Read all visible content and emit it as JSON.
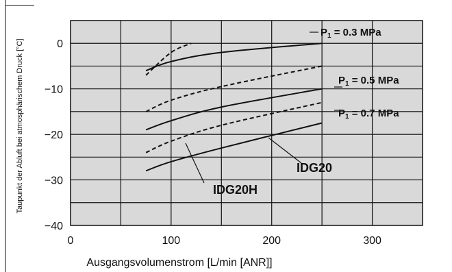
{
  "chart_data": {
    "type": "line",
    "xlabel": "Ausgangsvolumenstrom [L/min [ANR]]",
    "ylabel": "Taupunkt der Abluft bei atmosphärischem Druck [°C]",
    "xlim": [
      0,
      350
    ],
    "ylim": [
      -40,
      5
    ],
    "xticks": [
      0,
      100,
      200,
      300
    ],
    "yticks": [
      0,
      -10,
      -20,
      -30,
      -40
    ],
    "grid": true,
    "background": "#d9d9d9",
    "series": [
      {
        "name": "IDG20H",
        "pressure": "P1 = 0.3 MPa",
        "style": "dashed",
        "x": [
          75,
          100,
          120
        ],
        "y": [
          -7,
          -2,
          0
        ]
      },
      {
        "name": "IDG20",
        "pressure": "P1 = 0.3 MPa",
        "style": "solid",
        "x": [
          75,
          100,
          150,
          250
        ],
        "y": [
          -6,
          -4,
          -2,
          0
        ]
      },
      {
        "name": "IDG20H",
        "pressure": "P1 = 0.5 MPa",
        "style": "dashed",
        "x": [
          75,
          100,
          150,
          250
        ],
        "y": [
          -15,
          -12.5,
          -9.5,
          -5
        ]
      },
      {
        "name": "IDG20",
        "pressure": "P1 = 0.5 MPa",
        "style": "solid",
        "x": [
          75,
          100,
          150,
          250
        ],
        "y": [
          -19,
          -17,
          -14,
          -10
        ]
      },
      {
        "name": "IDG20H",
        "pressure": "P1 = 0.7 MPa",
        "style": "dashed",
        "x": [
          75,
          100,
          150,
          250
        ],
        "y": [
          -24,
          -21.5,
          -18,
          -13
        ]
      },
      {
        "name": "IDG20",
        "pressure": "P1 = 0.7 MPa",
        "style": "solid",
        "x": [
          75,
          100,
          150,
          250
        ],
        "y": [
          -28,
          -26,
          -23,
          -17.5
        ]
      }
    ],
    "annotations": {
      "p03": {
        "pre": "P",
        "sub": "1",
        "post": " = 0.3 MPa"
      },
      "p05": {
        "pre": "P",
        "sub": "1",
        "post": " = 0.5 MPa"
      },
      "p07": {
        "pre": "P",
        "sub": "1",
        "post": " = 0.7 MPa"
      },
      "idg20": "IDG20",
      "idg20h": "IDG20H"
    }
  }
}
